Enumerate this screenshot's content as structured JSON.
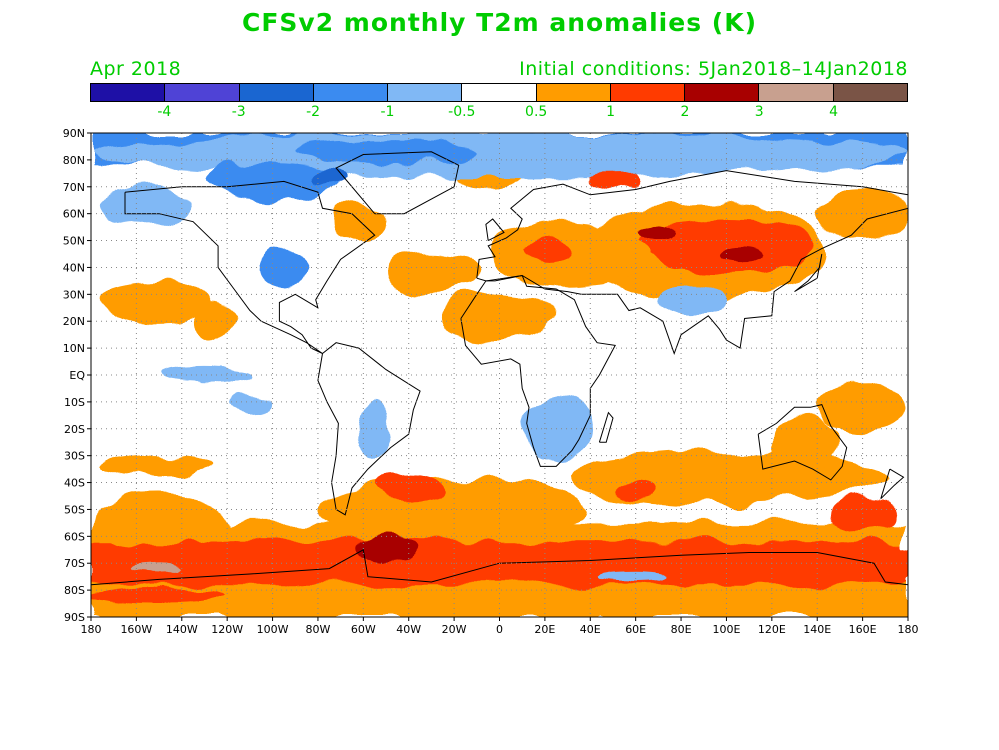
{
  "title": "CFSv2 monthly T2m anomalies (K)",
  "subtitle_left": "Apr 2018",
  "subtitle_right": "Initial conditions: 5Jan2018–14Jan2018",
  "text_color": "#00cc00",
  "colorbar": {
    "colors": [
      "#1e10a6",
      "#4f43d6",
      "#1a66d1",
      "#3b8bf0",
      "#80b8f5",
      "#ffffff",
      "#ff9c00",
      "#ff3b00",
      "#a80000",
      "#c8a08f",
      "#7a5446"
    ],
    "labels": [
      "-4",
      "-3",
      "-2",
      "-1",
      "-0.5",
      "0.5",
      "1",
      "2",
      "3",
      "4"
    ]
  },
  "map": {
    "lat_labels": [
      "90N",
      "80N",
      "70N",
      "60N",
      "50N",
      "40N",
      "30N",
      "20N",
      "10N",
      "EQ",
      "10S",
      "20S",
      "30S",
      "40S",
      "50S",
      "60S",
      "70S",
      "80S",
      "90S"
    ],
    "lon_labels": [
      "180",
      "160W",
      "140W",
      "120W",
      "100W",
      "80W",
      "60W",
      "40W",
      "20W",
      "0",
      "20E",
      "40E",
      "60E",
      "80E",
      "100E",
      "120E",
      "140E",
      "160E",
      "180"
    ],
    "regions": [
      {
        "level": 6,
        "lat": 46,
        "lon": 90,
        "rlat": 18,
        "rlon": 55
      },
      {
        "level": 7,
        "lat": 48,
        "lon": 100,
        "rlat": 10,
        "rlon": 40
      },
      {
        "level": 8,
        "lat": 53,
        "lon": 70,
        "rlat": 3,
        "rlon": 8
      },
      {
        "level": 8,
        "lat": 45,
        "lon": 108,
        "rlat": 3,
        "rlon": 10
      },
      {
        "level": 6,
        "lat": 45,
        "lon": 30,
        "rlat": 12,
        "rlon": 35
      },
      {
        "level": 7,
        "lat": 47,
        "lon": 20,
        "rlat": 4,
        "rlon": 10
      },
      {
        "level": 7,
        "lat": 73,
        "lon": 50,
        "rlat": 5,
        "rlon": 12
      },
      {
        "level": 6,
        "lat": 60,
        "lon": 160,
        "rlat": 10,
        "rlon": 20
      },
      {
        "level": 6,
        "lat": 75,
        "lon": -5,
        "rlat": 5,
        "rlon": 15
      },
      {
        "level": 6,
        "lat": 57,
        "lon": -62,
        "rlat": 7,
        "rlon": 12
      },
      {
        "level": 6,
        "lat": 38,
        "lon": -30,
        "rlat": 8,
        "rlon": 20
      },
      {
        "level": 6,
        "lat": 27,
        "lon": -150,
        "rlat": 8,
        "rlon": 25
      },
      {
        "level": 6,
        "lat": 20,
        "lon": -125,
        "rlat": 6,
        "rlon": 10
      },
      {
        "level": 6,
        "lat": 22,
        "lon": 0,
        "rlat": 9,
        "rlon": 25
      },
      {
        "level": 6,
        "lat": -38,
        "lon": 100,
        "rlat": 10,
        "rlon": 70
      },
      {
        "level": 6,
        "lat": -50,
        "lon": -20,
        "rlat": 12,
        "rlon": 60
      },
      {
        "level": 6,
        "lat": -25,
        "lon": 135,
        "rlat": 10,
        "rlon": 15
      },
      {
        "level": 6,
        "lat": -55,
        "lon": -150,
        "rlat": 10,
        "rlon": 30
      },
      {
        "level": 6,
        "lat": -33,
        "lon": -150,
        "rlat": 4,
        "rlon": 25
      },
      {
        "level": 7,
        "lat": -68,
        "lon": -150,
        "rlat": 6,
        "rlon": 30
      },
      {
        "level": 7,
        "lat": -68,
        "lon": -40,
        "rlat": 6,
        "rlon": 30
      },
      {
        "level": 8,
        "lat": -65,
        "lon": -50,
        "rlat": 4,
        "rlon": 14
      },
      {
        "level": 7,
        "lat": -82,
        "lon": -150,
        "rlat": 3,
        "rlon": 30
      },
      {
        "level": 9,
        "lat": -72,
        "lon": -150,
        "rlat": 2,
        "rlon": 10
      },
      {
        "level": 7,
        "lat": -42,
        "lon": -40,
        "rlat": 5,
        "rlon": 15
      },
      {
        "level": 7,
        "lat": -42,
        "lon": 60,
        "rlat": 3,
        "rlon": 10
      },
      {
        "level": 7,
        "lat": -70,
        "lon": 170,
        "rlat": 8,
        "rlon": 20
      },
      {
        "level": 7,
        "lat": -52,
        "lon": 160,
        "rlat": 6,
        "rlon": 15
      },
      {
        "level": 6,
        "lat": -12,
        "lon": 160,
        "rlat": 8,
        "rlon": 20
      },
      {
        "level": 4,
        "lat": 82,
        "lon": 0,
        "rlat": 8,
        "rlon": 180
      },
      {
        "level": 3,
        "lat": 83,
        "lon": -50,
        "rlat": 4,
        "rlon": 40
      },
      {
        "level": 3,
        "lat": 72,
        "lon": -100,
        "rlat": 7,
        "rlon": 30
      },
      {
        "level": 2,
        "lat": 74,
        "lon": -75,
        "rlat": 3,
        "rlon": 8
      },
      {
        "level": 4,
        "lat": 63,
        "lon": -155,
        "rlat": 7,
        "rlon": 20
      },
      {
        "level": 3,
        "lat": 40,
        "lon": -95,
        "rlat": 7,
        "rlon": 12
      },
      {
        "level": 4,
        "lat": -20,
        "lon": 25,
        "rlat": 12,
        "rlon": 15
      },
      {
        "level": 4,
        "lat": -20,
        "lon": -55,
        "rlat": 10,
        "rlon": 8
      },
      {
        "level": 4,
        "lat": 0,
        "lon": -130,
        "rlat": 3,
        "rlon": 20
      },
      {
        "level": 4,
        "lat": -10,
        "lon": -110,
        "rlat": 3,
        "rlon": 10
      },
      {
        "level": 4,
        "lat": 28,
        "lon": 85,
        "rlat": 5,
        "rlon": 15
      },
      {
        "level": 4,
        "lat": -75,
        "lon": 60,
        "rlat": 2,
        "rlon": 15
      }
    ]
  }
}
